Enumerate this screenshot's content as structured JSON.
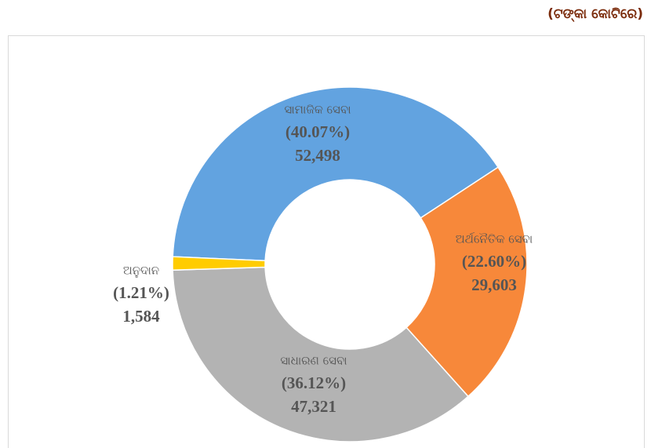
{
  "chart_data": {
    "type": "pie",
    "donut": true,
    "unit_label": "(ଟଙ୍କା କୋଟିରେ)",
    "categories": [
      "ସାମାଜିକ ସେବା",
      "ଅର୍ଥନୈତିକ ସେବା",
      "ସାଧାରଣ ସେବା",
      "ଅନୁଦାନ"
    ],
    "values": [
      52498,
      29603,
      47321,
      1584
    ],
    "value_labels": [
      "52,498",
      "29,603",
      "47,321",
      "1,584"
    ],
    "percentages": [
      40.07,
      22.6,
      36.12,
      1.21
    ],
    "percentage_labels": [
      "(40.07%)",
      "(22.60%)",
      "(36.12%)",
      "(1.21%)"
    ],
    "colors": [
      "#62a3e0",
      "#f7883a",
      "#b3b3b3",
      "#ffcc00"
    ]
  }
}
